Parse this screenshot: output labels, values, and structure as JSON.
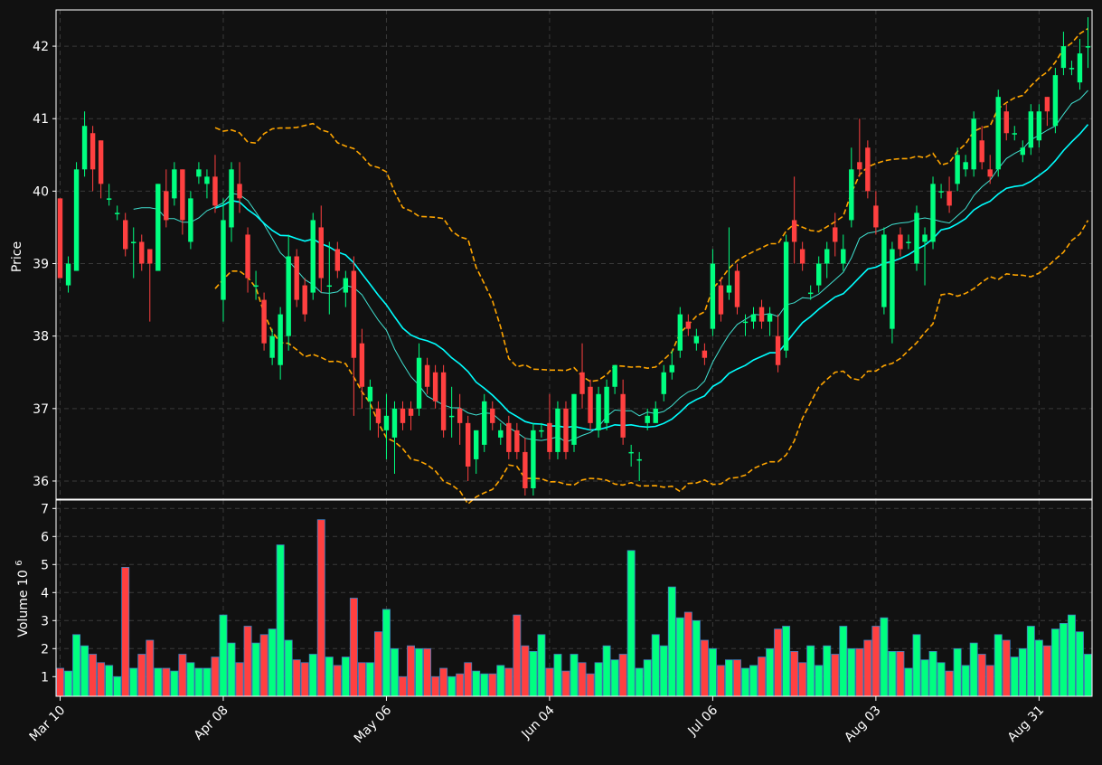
{
  "colors": {
    "background": "#111111",
    "up": "#00ff80",
    "down": "#ff4040",
    "vol_edge": "#3f7fbf",
    "bollinger": "#ffa500",
    "ma_fast": "#40e0d0",
    "ma_slow": "#00ffff",
    "grid": "#3a3a3a",
    "text": "#ffffff",
    "spine": "#ffffff"
  },
  "chart_data": {
    "type": "candlestick",
    "price_panel": {
      "ylabel": "Price",
      "ylim": [
        35.75,
        42.5
      ],
      "yticks": [
        36,
        37,
        38,
        39,
        40,
        41,
        42
      ],
      "grid": true
    },
    "volume_panel": {
      "ylabel": "Volume",
      "scale_label": "10",
      "scale_exponent": "6",
      "ylim": [
        0.3,
        7.3
      ],
      "yticks": [
        1,
        2,
        3,
        4,
        5,
        6,
        7
      ],
      "grid": true
    },
    "x_ticks": [
      {
        "label": "Mar 10",
        "index": 0
      },
      {
        "label": "Apr 08",
        "index": 20
      },
      {
        "label": "May 06",
        "index": 40
      },
      {
        "label": "Jun 04",
        "index": 60
      },
      {
        "label": "Jul 06",
        "index": 80
      },
      {
        "label": "Aug 03",
        "index": 100
      },
      {
        "label": "Aug 31",
        "index": 120
      }
    ],
    "ohlcv": [
      [
        39.9,
        38.8,
        39.9,
        38.8,
        1.3
      ],
      [
        38.7,
        39.0,
        39.1,
        38.6,
        1.2
      ],
      [
        38.9,
        40.3,
        40.4,
        38.9,
        2.5
      ],
      [
        40.3,
        40.9,
        41.1,
        40.2,
        2.1
      ],
      [
        40.8,
        40.3,
        40.9,
        40.0,
        1.8
      ],
      [
        40.7,
        40.1,
        40.7,
        39.9,
        1.5
      ],
      [
        39.9,
        39.9,
        40.1,
        39.8,
        1.4
      ],
      [
        39.7,
        39.7,
        39.8,
        39.6,
        1.0
      ],
      [
        39.6,
        39.2,
        39.7,
        39.1,
        4.9
      ],
      [
        39.3,
        39.3,
        39.5,
        38.8,
        1.3
      ],
      [
        39.3,
        39.0,
        39.4,
        38.9,
        1.8
      ],
      [
        39.2,
        39.0,
        39.2,
        38.2,
        2.3
      ],
      [
        38.9,
        40.1,
        40.1,
        38.9,
        1.3
      ],
      [
        40.0,
        39.6,
        40.3,
        39.5,
        1.3
      ],
      [
        39.9,
        40.3,
        40.4,
        39.8,
        1.2
      ],
      [
        40.3,
        39.6,
        40.3,
        39.4,
        1.8
      ],
      [
        39.3,
        39.9,
        40.0,
        39.2,
        1.5
      ],
      [
        40.2,
        40.3,
        40.4,
        40.1,
        1.3
      ],
      [
        40.1,
        40.2,
        40.3,
        39.9,
        1.3
      ],
      [
        40.2,
        39.8,
        40.5,
        39.7,
        1.7
      ],
      [
        38.5,
        39.6,
        39.9,
        38.2,
        3.2
      ],
      [
        39.5,
        40.3,
        40.4,
        39.3,
        2.2
      ],
      [
        40.1,
        39.9,
        40.4,
        39.7,
        1.5
      ],
      [
        39.4,
        38.8,
        39.5,
        38.6,
        2.8
      ],
      [
        38.7,
        38.7,
        38.9,
        38.5,
        2.2
      ],
      [
        38.5,
        37.9,
        38.6,
        37.8,
        2.5
      ],
      [
        37.7,
        38.0,
        38.1,
        37.6,
        2.7
      ],
      [
        37.6,
        38.3,
        38.4,
        37.4,
        5.7
      ],
      [
        38.0,
        39.1,
        39.4,
        37.8,
        2.3
      ],
      [
        39.1,
        38.5,
        39.2,
        38.4,
        1.6
      ],
      [
        38.7,
        38.3,
        38.8,
        38.2,
        1.5
      ],
      [
        38.6,
        39.6,
        39.7,
        38.5,
        1.8
      ],
      [
        39.5,
        38.8,
        39.8,
        38.6,
        6.6
      ],
      [
        38.7,
        38.7,
        39.3,
        38.3,
        1.7
      ],
      [
        39.2,
        38.9,
        39.3,
        38.8,
        1.4
      ],
      [
        38.6,
        38.8,
        38.9,
        38.4,
        1.7
      ],
      [
        38.9,
        37.7,
        39.1,
        36.9,
        3.8
      ],
      [
        37.9,
        37.3,
        38.1,
        37.0,
        1.5
      ],
      [
        37.1,
        37.3,
        37.4,
        36.7,
        1.5
      ],
      [
        37.0,
        36.8,
        37.1,
        36.6,
        2.6
      ],
      [
        36.7,
        36.9,
        37.2,
        36.3,
        3.4
      ],
      [
        36.6,
        37.0,
        37.1,
        36.1,
        2.0
      ],
      [
        37.0,
        36.8,
        37.1,
        36.7,
        1.0
      ],
      [
        37.0,
        36.9,
        37.1,
        36.7,
        2.1
      ],
      [
        37.0,
        37.7,
        37.9,
        36.9,
        2.0
      ],
      [
        37.6,
        37.3,
        37.7,
        37.2,
        2.0
      ],
      [
        37.5,
        37.1,
        37.6,
        37.0,
        1.0
      ],
      [
        37.5,
        36.7,
        37.6,
        36.6,
        1.3
      ],
      [
        36.9,
        36.9,
        37.3,
        36.6,
        1.0
      ],
      [
        37.0,
        36.8,
        37.2,
        36.5,
        1.1
      ],
      [
        36.8,
        36.2,
        36.9,
        36.0,
        1.5
      ],
      [
        36.3,
        36.7,
        36.7,
        36.1,
        1.2
      ],
      [
        36.5,
        37.1,
        37.2,
        36.4,
        1.1
      ],
      [
        37.0,
        36.8,
        37.1,
        36.7,
        1.1
      ],
      [
        36.6,
        36.7,
        36.8,
        36.5,
        1.4
      ],
      [
        36.8,
        36.4,
        36.9,
        36.3,
        1.3
      ],
      [
        36.7,
        36.4,
        36.8,
        36.3,
        3.2
      ],
      [
        36.4,
        35.9,
        36.6,
        35.8,
        2.1
      ],
      [
        35.9,
        36.7,
        36.8,
        35.8,
        1.9
      ],
      [
        36.7,
        36.7,
        36.8,
        36.6,
        2.5
      ],
      [
        36.8,
        36.4,
        37.2,
        36.3,
        1.3
      ],
      [
        36.4,
        37.0,
        37.1,
        36.3,
        1.8
      ],
      [
        37.0,
        36.4,
        37.1,
        36.3,
        1.2
      ],
      [
        36.5,
        37.2,
        37.2,
        36.4,
        1.8
      ],
      [
        37.5,
        37.2,
        37.9,
        37.0,
        1.5
      ],
      [
        37.3,
        36.8,
        37.4,
        36.7,
        1.1
      ],
      [
        36.7,
        37.2,
        37.3,
        36.6,
        1.5
      ],
      [
        36.8,
        37.3,
        37.4,
        36.7,
        2.1
      ],
      [
        37.3,
        37.6,
        37.6,
        37.2,
        1.6
      ],
      [
        37.2,
        36.6,
        37.4,
        36.5,
        1.8
      ],
      [
        36.4,
        36.4,
        36.5,
        36.2,
        5.5
      ],
      [
        36.3,
        36.3,
        36.4,
        36.0,
        1.3
      ],
      [
        36.8,
        36.9,
        37.0,
        36.7,
        1.6
      ],
      [
        36.8,
        37.0,
        37.1,
        36.8,
        2.5
      ],
      [
        37.2,
        37.5,
        37.6,
        37.1,
        2.1
      ],
      [
        37.5,
        37.6,
        37.8,
        37.4,
        4.2
      ],
      [
        37.8,
        38.3,
        38.4,
        37.7,
        3.1
      ],
      [
        38.2,
        38.1,
        38.3,
        38.0,
        3.3
      ],
      [
        37.9,
        38.0,
        38.1,
        37.8,
        3.0
      ],
      [
        37.8,
        37.7,
        37.9,
        37.6,
        2.3
      ],
      [
        38.1,
        39.0,
        39.2,
        38.0,
        2.0
      ],
      [
        38.7,
        38.3,
        38.8,
        38.2,
        1.4
      ],
      [
        38.6,
        38.7,
        39.5,
        38.5,
        1.6
      ],
      [
        38.9,
        38.4,
        39.0,
        38.3,
        1.6
      ],
      [
        38.2,
        38.2,
        38.3,
        38.0,
        1.3
      ],
      [
        38.2,
        38.3,
        38.4,
        38.1,
        1.4
      ],
      [
        38.4,
        38.2,
        38.5,
        38.1,
        1.7
      ],
      [
        38.2,
        38.3,
        38.4,
        38.0,
        2.0
      ],
      [
        38.0,
        37.6,
        38.3,
        37.5,
        2.7
      ],
      [
        37.8,
        39.3,
        39.4,
        37.7,
        2.8
      ],
      [
        39.6,
        39.3,
        40.2,
        39.0,
        1.9
      ],
      [
        39.2,
        39.0,
        39.3,
        38.9,
        1.5
      ],
      [
        38.6,
        38.6,
        38.7,
        38.5,
        2.1
      ],
      [
        38.7,
        39.0,
        39.1,
        38.6,
        1.4
      ],
      [
        39.0,
        39.2,
        39.3,
        38.8,
        2.1
      ],
      [
        39.5,
        39.3,
        39.7,
        39.1,
        1.8
      ],
      [
        39.0,
        39.2,
        39.4,
        38.9,
        2.8
      ],
      [
        39.6,
        40.3,
        40.6,
        39.5,
        2.0
      ],
      [
        40.4,
        40.3,
        41.0,
        40.2,
        2.0
      ],
      [
        40.6,
        40.0,
        40.7,
        39.9,
        2.3
      ],
      [
        39.8,
        39.5,
        40.0,
        39.4,
        2.8
      ],
      [
        38.4,
        39.4,
        39.5,
        38.3,
        3.1
      ],
      [
        38.1,
        39.2,
        39.3,
        37.9,
        1.9
      ],
      [
        39.4,
        39.2,
        39.5,
        39.1,
        1.9
      ],
      [
        39.3,
        39.3,
        39.4,
        39.2,
        1.3
      ],
      [
        39.0,
        39.7,
        39.8,
        38.9,
        2.5
      ],
      [
        39.3,
        39.4,
        39.5,
        38.7,
        1.6
      ],
      [
        39.3,
        40.1,
        40.2,
        39.2,
        1.9
      ],
      [
        40.0,
        40.0,
        40.1,
        39.9,
        1.5
      ],
      [
        40.0,
        39.8,
        40.2,
        39.7,
        1.2
      ],
      [
        40.1,
        40.5,
        40.6,
        40.0,
        2.0
      ],
      [
        40.3,
        40.4,
        40.5,
        40.2,
        1.4
      ],
      [
        40.3,
        41.0,
        41.1,
        40.2,
        2.2
      ],
      [
        40.7,
        40.4,
        40.9,
        40.3,
        1.8
      ],
      [
        40.3,
        40.2,
        40.5,
        40.1,
        1.4
      ],
      [
        40.3,
        41.3,
        41.4,
        40.2,
        2.5
      ],
      [
        41.1,
        40.8,
        41.2,
        40.7,
        2.3
      ],
      [
        40.8,
        40.8,
        40.9,
        40.7,
        1.7
      ],
      [
        40.5,
        40.6,
        40.7,
        40.4,
        2.0
      ],
      [
        40.6,
        41.1,
        41.2,
        40.5,
        2.8
      ],
      [
        40.7,
        41.1,
        41.2,
        40.6,
        2.3
      ],
      [
        41.3,
        41.1,
        41.3,
        40.9,
        2.1
      ],
      [
        40.9,
        41.6,
        41.7,
        40.8,
        2.7
      ],
      [
        41.7,
        42.0,
        42.2,
        41.6,
        2.9
      ],
      [
        41.7,
        41.7,
        41.8,
        41.6,
        3.2
      ],
      [
        41.5,
        41.9,
        42.1,
        41.4,
        2.6
      ],
      [
        42.0,
        42.0,
        42.4,
        41.7,
        1.8
      ]
    ]
  }
}
